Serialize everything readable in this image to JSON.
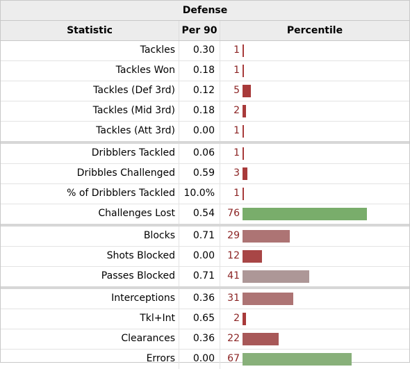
{
  "table": {
    "caption": "Defense",
    "columns": {
      "statistic": "Statistic",
      "per90": "Per 90",
      "percentile": "Percentile"
    },
    "groups": [
      [
        {
          "stat": "Tackles",
          "per90": "0.30",
          "pct": "1",
          "pct_value": 1,
          "bar_color": "#a83a3a"
        },
        {
          "stat": "Tackles Won",
          "per90": "0.18",
          "pct": "1",
          "pct_value": 1,
          "bar_color": "#a83a3a"
        },
        {
          "stat": "Tackles (Def 3rd)",
          "per90": "0.12",
          "pct": "5",
          "pct_value": 5,
          "bar_color": "#a83a3a"
        },
        {
          "stat": "Tackles (Mid 3rd)",
          "per90": "0.18",
          "pct": "2",
          "pct_value": 2,
          "bar_color": "#a83a3a"
        },
        {
          "stat": "Tackles (Att 3rd)",
          "per90": "0.00",
          "pct": "1",
          "pct_value": 1,
          "bar_color": "#a83a3a"
        }
      ],
      [
        {
          "stat": "Dribblers Tackled",
          "per90": "0.06",
          "pct": "1",
          "pct_value": 1,
          "bar_color": "#a83a3a"
        },
        {
          "stat": "Dribbles Challenged",
          "per90": "0.59",
          "pct": "3",
          "pct_value": 3,
          "bar_color": "#a83a3a"
        },
        {
          "stat": "% of Dribblers Tackled",
          "per90": "10.0%",
          "pct": "1",
          "pct_value": 1,
          "bar_color": "#a83a3a"
        },
        {
          "stat": "Challenges Lost",
          "per90": "0.54",
          "pct": "76",
          "pct_value": 76,
          "bar_color": "#79ad6b"
        }
      ],
      [
        {
          "stat": "Blocks",
          "per90": "0.71",
          "pct": "29",
          "pct_value": 29,
          "bar_color": "#ad7474"
        },
        {
          "stat": "Shots Blocked",
          "per90": "0.00",
          "pct": "12",
          "pct_value": 12,
          "bar_color": "#a84646"
        },
        {
          "stat": "Passes Blocked",
          "per90": "0.71",
          "pct": "41",
          "pct_value": 41,
          "bar_color": "#ad9797"
        }
      ],
      [
        {
          "stat": "Interceptions",
          "per90": "0.36",
          "pct": "31",
          "pct_value": 31,
          "bar_color": "#ad7474"
        },
        {
          "stat": "Tkl+Int",
          "per90": "0.65",
          "pct": "2",
          "pct_value": 2,
          "bar_color": "#a83a3a"
        },
        {
          "stat": "Clearances",
          "per90": "0.36",
          "pct": "22",
          "pct_value": 22,
          "bar_color": "#a85858"
        },
        {
          "stat": "Errors",
          "per90": "0.00",
          "pct": "67",
          "pct_value": 67,
          "bar_color": "#88b07a"
        }
      ]
    ]
  }
}
